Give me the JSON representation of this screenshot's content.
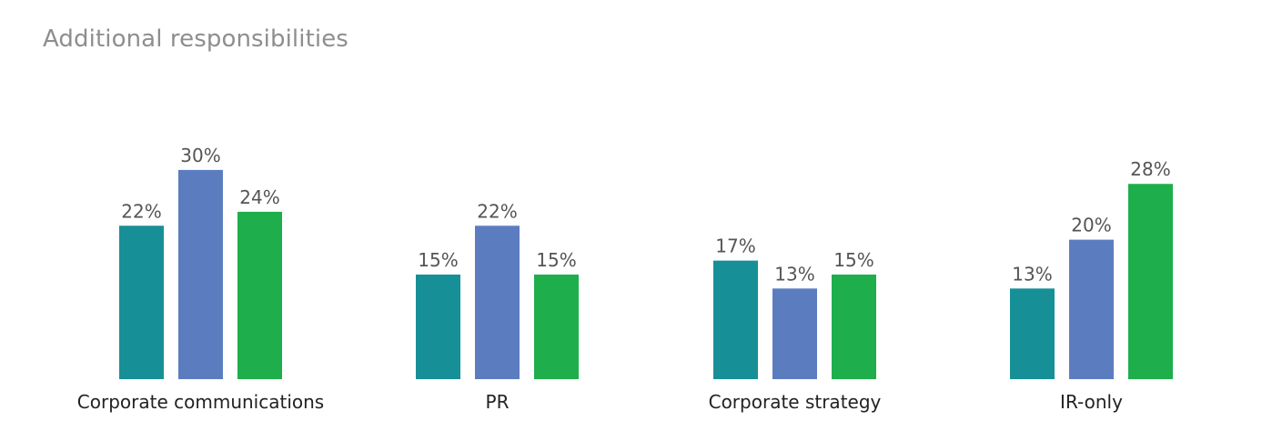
{
  "title": "Additional responsibilities",
  "chart_data": {
    "type": "bar",
    "categories": [
      "Corporate communications",
      "PR",
      "Corporate strategy",
      "IR-only"
    ],
    "series": [
      {
        "values": [
          22,
          15,
          17,
          13
        ],
        "color": "#178f97"
      },
      {
        "values": [
          30,
          22,
          13,
          20
        ],
        "color": "#5b7dc0"
      },
      {
        "values": [
          24,
          15,
          15,
          28
        ],
        "color": "#1eae4b"
      }
    ],
    "value_suffix": "%",
    "ylim": [
      0,
      30
    ],
    "grid": false,
    "legend": "none"
  }
}
